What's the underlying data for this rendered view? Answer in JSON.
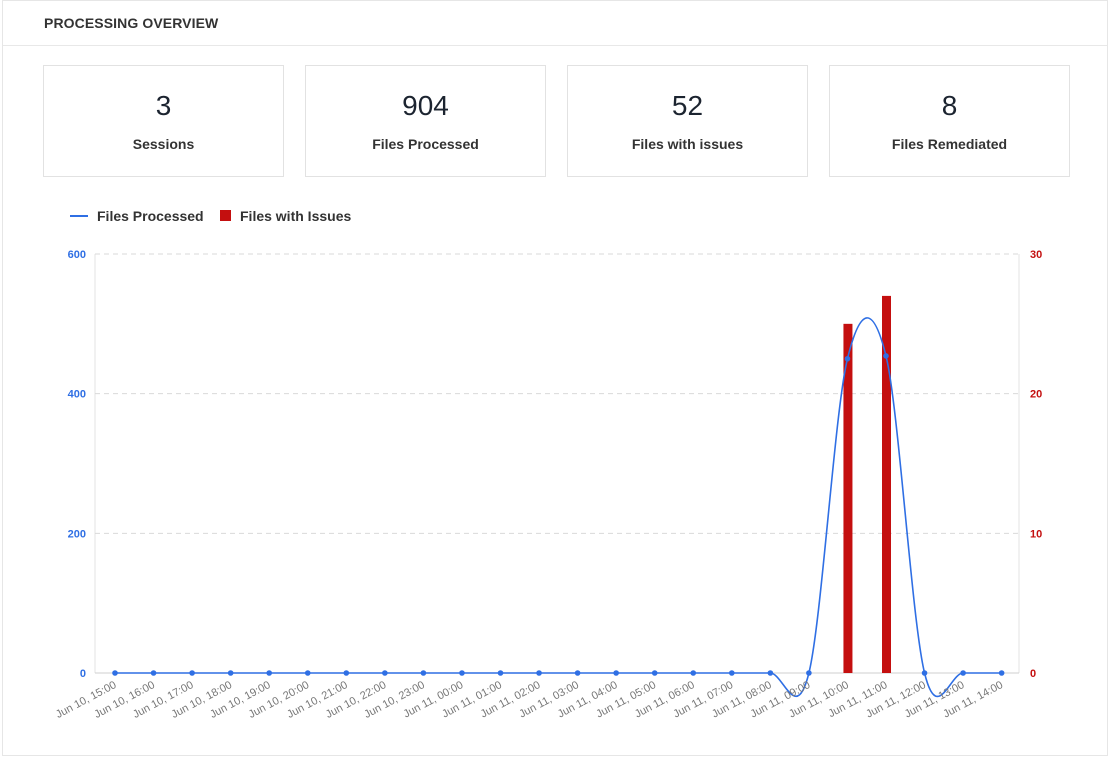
{
  "header": {
    "title": "PROCESSING OVERVIEW"
  },
  "stats": [
    {
      "value": "3",
      "label": "Sessions"
    },
    {
      "value": "904",
      "label": "Files Processed"
    },
    {
      "value": "52",
      "label": "Files with issues"
    },
    {
      "value": "8",
      "label": "Files Remediated"
    }
  ],
  "legend": {
    "files_processed": "Files Processed",
    "files_with_issues": "Files with Issues"
  },
  "colors": {
    "processed": "#2f6fe4",
    "issues": "#c40f0f",
    "left_axis": "#2f6fe4",
    "right_axis": "#c40f0f",
    "grid": "#d9d9d9"
  },
  "chart_data": {
    "type": "line+bar",
    "categories": [
      "Jun 10, 15:00",
      "Jun 10, 16:00",
      "Jun 10, 17:00",
      "Jun 10, 18:00",
      "Jun 10, 19:00",
      "Jun 10, 20:00",
      "Jun 10, 21:00",
      "Jun 10, 22:00",
      "Jun 10, 23:00",
      "Jun 11, 00:00",
      "Jun 11, 01:00",
      "Jun 11, 02:00",
      "Jun 11, 03:00",
      "Jun 11, 04:00",
      "Jun 11, 05:00",
      "Jun 11, 06:00",
      "Jun 11, 07:00",
      "Jun 11, 08:00",
      "Jun 11, 09:00",
      "Jun 11, 10:00",
      "Jun 11, 11:00",
      "Jun 11, 12:00",
      "Jun 11, 13:00",
      "Jun 11, 14:00"
    ],
    "series": [
      {
        "name": "Files Processed",
        "kind": "line",
        "axis": "left",
        "values": [
          0,
          0,
          0,
          0,
          0,
          0,
          0,
          0,
          0,
          0,
          0,
          0,
          0,
          0,
          0,
          0,
          0,
          0,
          0,
          450,
          454,
          0,
          0,
          0
        ]
      },
      {
        "name": "Files with Issues",
        "kind": "bar",
        "axis": "right",
        "values": [
          0,
          0,
          0,
          0,
          0,
          0,
          0,
          0,
          0,
          0,
          0,
          0,
          0,
          0,
          0,
          0,
          0,
          0,
          0,
          25,
          27,
          0,
          0,
          0
        ]
      }
    ],
    "left_axis": {
      "min": 0,
      "max": 600,
      "ticks": [
        0,
        200,
        400,
        600
      ]
    },
    "right_axis": {
      "min": 0,
      "max": 30,
      "ticks": [
        0,
        10,
        20,
        30
      ]
    },
    "grid": true,
    "legend_position": "top-left"
  }
}
